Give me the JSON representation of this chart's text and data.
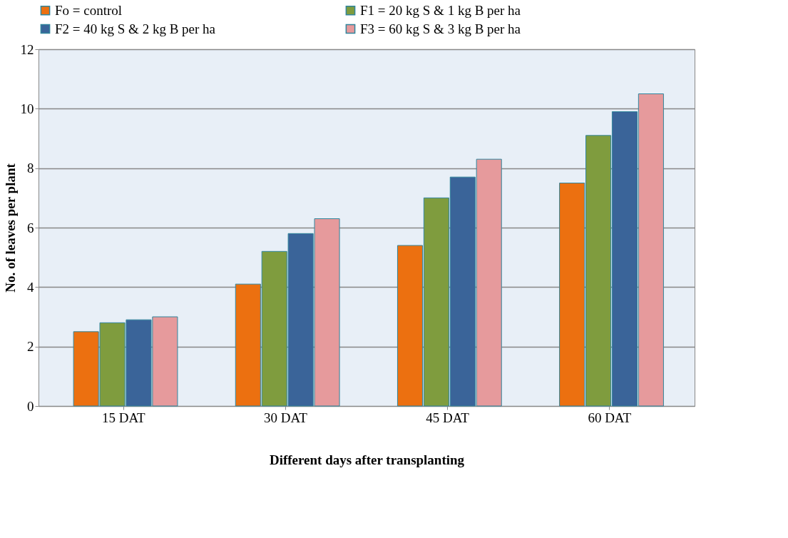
{
  "chart_data": {
    "type": "bar",
    "categories": [
      "15 DAT",
      "30 DAT",
      "45 DAT",
      "60 DAT"
    ],
    "series": [
      {
        "name": "Fo = control",
        "color": "#ec7010",
        "values": [
          2.5,
          4.1,
          5.4,
          7.5
        ]
      },
      {
        "name": "F1 = 20 kg S & 1 kg B per ha",
        "color": "#7f9c3e",
        "values": [
          2.8,
          5.2,
          7.0,
          9.1
        ]
      },
      {
        "name": "F2 = 40 kg S & 2 kg B per ha",
        "color": "#3a6499",
        "values": [
          2.9,
          5.8,
          7.7,
          9.9
        ]
      },
      {
        "name": "F3 = 60 kg S & 3 kg B per ha",
        "color": "#e69a9c",
        "values": [
          3.0,
          6.3,
          8.3,
          10.5
        ]
      }
    ],
    "xlabel": "Different days after transplanting",
    "ylabel": "No. of leaves per plant",
    "ylim": [
      0,
      12
    ],
    "yticks": [
      0,
      2,
      4,
      6,
      8,
      10,
      12
    ],
    "grid": "y",
    "legend": "top"
  }
}
